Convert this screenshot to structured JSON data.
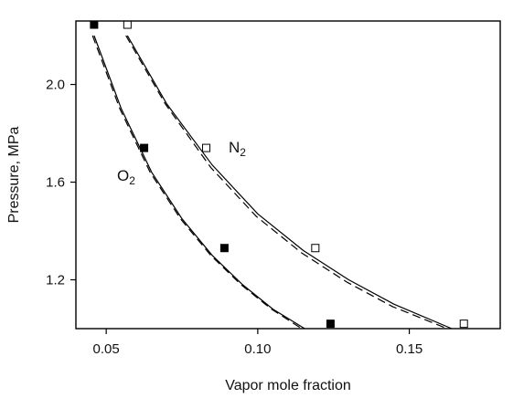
{
  "chart_data": {
    "type": "scatter",
    "xlabel": "Vapor mole fraction",
    "ylabel": "Pressure, MPa",
    "xlim": [
      0.04,
      0.18
    ],
    "ylim": [
      1.0,
      2.26
    ],
    "xticks": [
      "0.05",
      "0.10",
      "0.15"
    ],
    "xtick_values": [
      0.05,
      0.1,
      0.15
    ],
    "yticks": [
      "1.2",
      "1.6",
      "2.0"
    ],
    "ytick_values": [
      1.2,
      1.6,
      2.0
    ],
    "grid": false,
    "legend": "none",
    "series": [
      {
        "name": "O2",
        "label_main": "O",
        "label_sub": "2",
        "marker": "filled-square",
        "points": [
          {
            "x": 0.046,
            "y": 2.245
          },
          {
            "x": 0.0625,
            "y": 1.74
          },
          {
            "x": 0.089,
            "y": 1.33
          },
          {
            "x": 0.124,
            "y": 1.02
          }
        ],
        "curve_solid": [
          {
            "x": 0.046,
            "y": 2.2
          },
          {
            "x": 0.055,
            "y": 1.9
          },
          {
            "x": 0.065,
            "y": 1.64
          },
          {
            "x": 0.075,
            "y": 1.45
          },
          {
            "x": 0.085,
            "y": 1.3
          },
          {
            "x": 0.095,
            "y": 1.18
          },
          {
            "x": 0.105,
            "y": 1.08
          },
          {
            "x": 0.1155,
            "y": 1.0
          }
        ],
        "curve_dashed": [
          {
            "x": 0.0455,
            "y": 2.2
          },
          {
            "x": 0.0545,
            "y": 1.9
          },
          {
            "x": 0.0645,
            "y": 1.64
          },
          {
            "x": 0.0745,
            "y": 1.45
          },
          {
            "x": 0.0845,
            "y": 1.3
          },
          {
            "x": 0.0945,
            "y": 1.18
          },
          {
            "x": 0.1045,
            "y": 1.08
          },
          {
            "x": 0.1145,
            "y": 1.0
          }
        ]
      },
      {
        "name": "N2",
        "label_main": "N",
        "label_sub": "2",
        "marker": "open-square",
        "points": [
          {
            "x": 0.057,
            "y": 2.245
          },
          {
            "x": 0.083,
            "y": 1.74
          },
          {
            "x": 0.119,
            "y": 1.33
          },
          {
            "x": 0.168,
            "y": 1.02
          }
        ],
        "curve_solid": [
          {
            "x": 0.057,
            "y": 2.2
          },
          {
            "x": 0.07,
            "y": 1.92
          },
          {
            "x": 0.085,
            "y": 1.67
          },
          {
            "x": 0.1,
            "y": 1.47
          },
          {
            "x": 0.115,
            "y": 1.32
          },
          {
            "x": 0.13,
            "y": 1.2
          },
          {
            "x": 0.145,
            "y": 1.1
          },
          {
            "x": 0.164,
            "y": 1.0
          }
        ],
        "curve_dashed": [
          {
            "x": 0.0565,
            "y": 2.2
          },
          {
            "x": 0.0695,
            "y": 1.92
          },
          {
            "x": 0.0845,
            "y": 1.66
          },
          {
            "x": 0.0995,
            "y": 1.46
          },
          {
            "x": 0.1145,
            "y": 1.31
          },
          {
            "x": 0.1295,
            "y": 1.19
          },
          {
            "x": 0.1445,
            "y": 1.09
          },
          {
            "x": 0.1625,
            "y": 1.0
          }
        ]
      }
    ]
  }
}
